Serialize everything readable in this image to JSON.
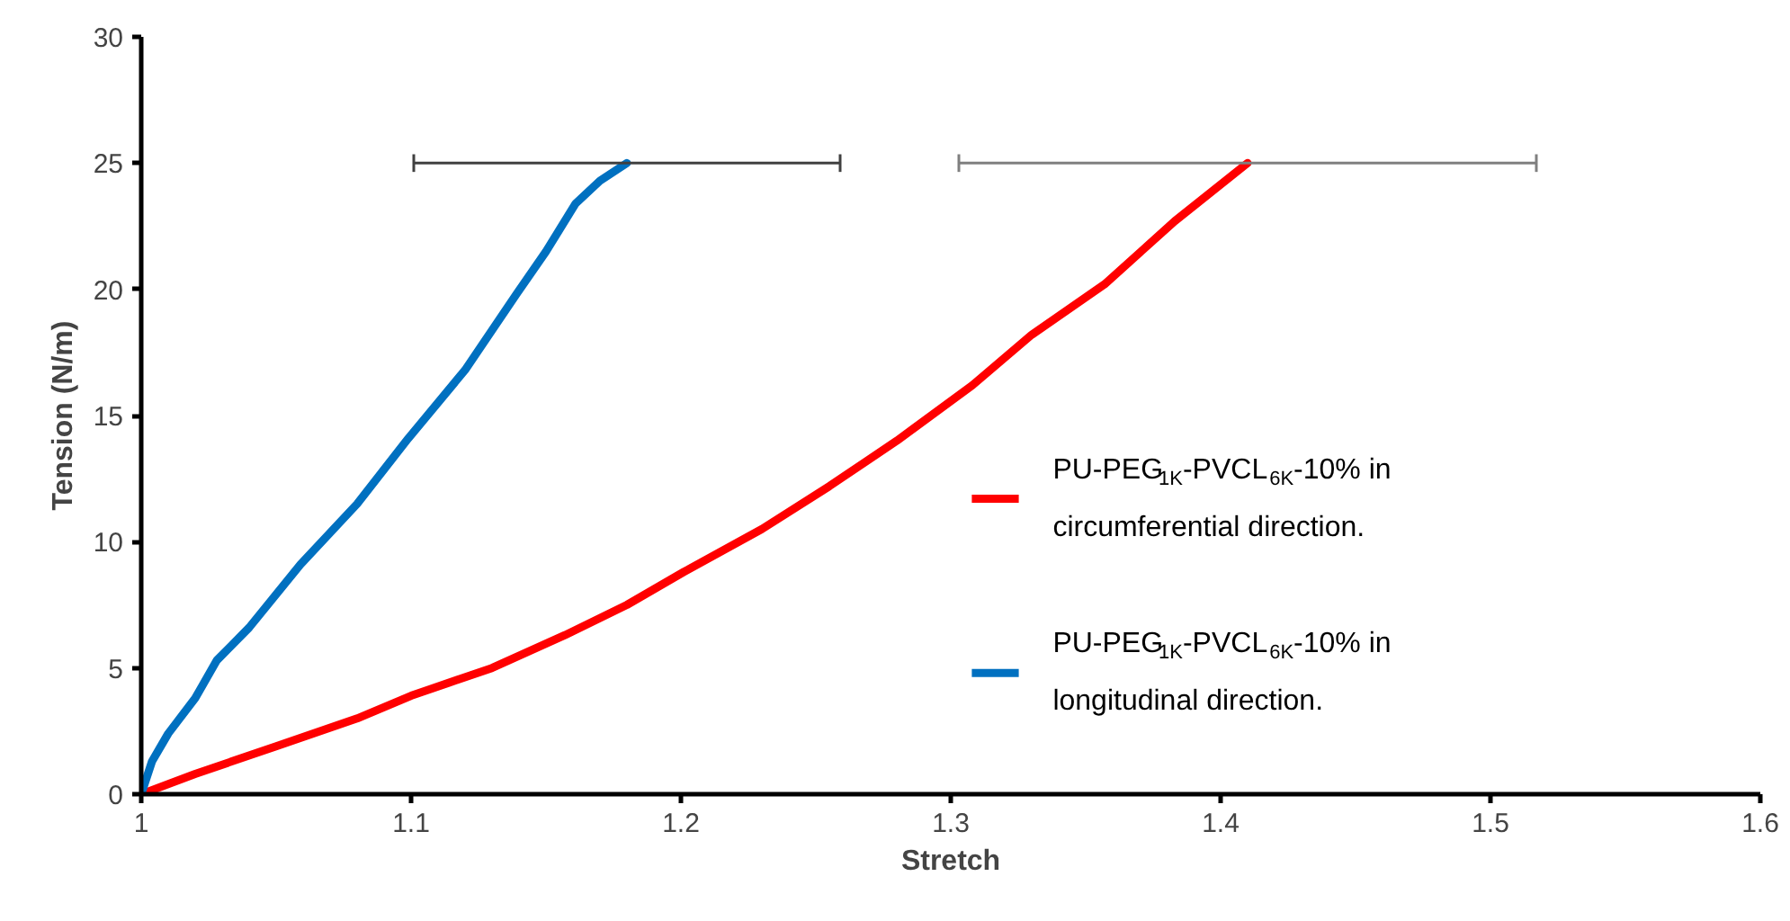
{
  "chart_data": {
    "type": "line",
    "xlabel": "Stretch",
    "ylabel": "Tension (N/m)",
    "xlim": [
      1,
      1.6
    ],
    "xticks": [
      1,
      1.1,
      1.2,
      1.3,
      1.4,
      1.5,
      1.6
    ],
    "ylim": [
      0,
      30
    ],
    "yticks": [
      0,
      5,
      10,
      15,
      20,
      25,
      30
    ],
    "grid": false,
    "legend": "right",
    "marker": "none",
    "line_style": "solid",
    "series": [
      {
        "name": "PU-PEG$_{1K}$-PVCL$_{6K}$-10% in circumferential direction.",
        "color": "#ff0000",
        "x": [
          1,
          1.02,
          1.05,
          1.08,
          1.1,
          1.13,
          1.157,
          1.18,
          1.201,
          1.23,
          1.255,
          1.28,
          1.308,
          1.33,
          1.357,
          1.383,
          1.41
        ],
        "values": [
          0,
          0.8,
          1.9,
          3,
          3.9,
          5,
          6.3,
          7.5,
          8.8,
          10.5,
          12.2,
          14,
          16.2,
          18.2,
          20.2,
          22.7,
          25
        ],
        "xerrors": [
          null,
          null,
          null,
          null,
          null,
          null,
          null,
          null,
          null,
          null,
          null,
          null,
          null,
          null,
          null,
          null,
          0.107
        ]
      },
      {
        "name": "PU-PEG$_{1K}$-PVCL$_{6K}$-10% in longitudinal direction.",
        "color": "#0070c0",
        "x": [
          1,
          1.004,
          1.01,
          1.02,
          1.028,
          1.04,
          1.059,
          1.08,
          1.099,
          1.12,
          1.139,
          1.15,
          1.161,
          1.17,
          1.18
        ],
        "values": [
          0,
          1.3,
          2.4,
          3.8,
          5.3,
          6.6,
          9.1,
          11.5,
          14.1,
          16.8,
          19.8,
          21.5,
          23.4,
          24.3,
          25
        ],
        "xerrors": [
          null,
          null,
          null,
          null,
          null,
          null,
          null,
          null,
          null,
          null,
          null,
          null,
          null,
          null,
          0.079
        ]
      }
    ]
  }
}
